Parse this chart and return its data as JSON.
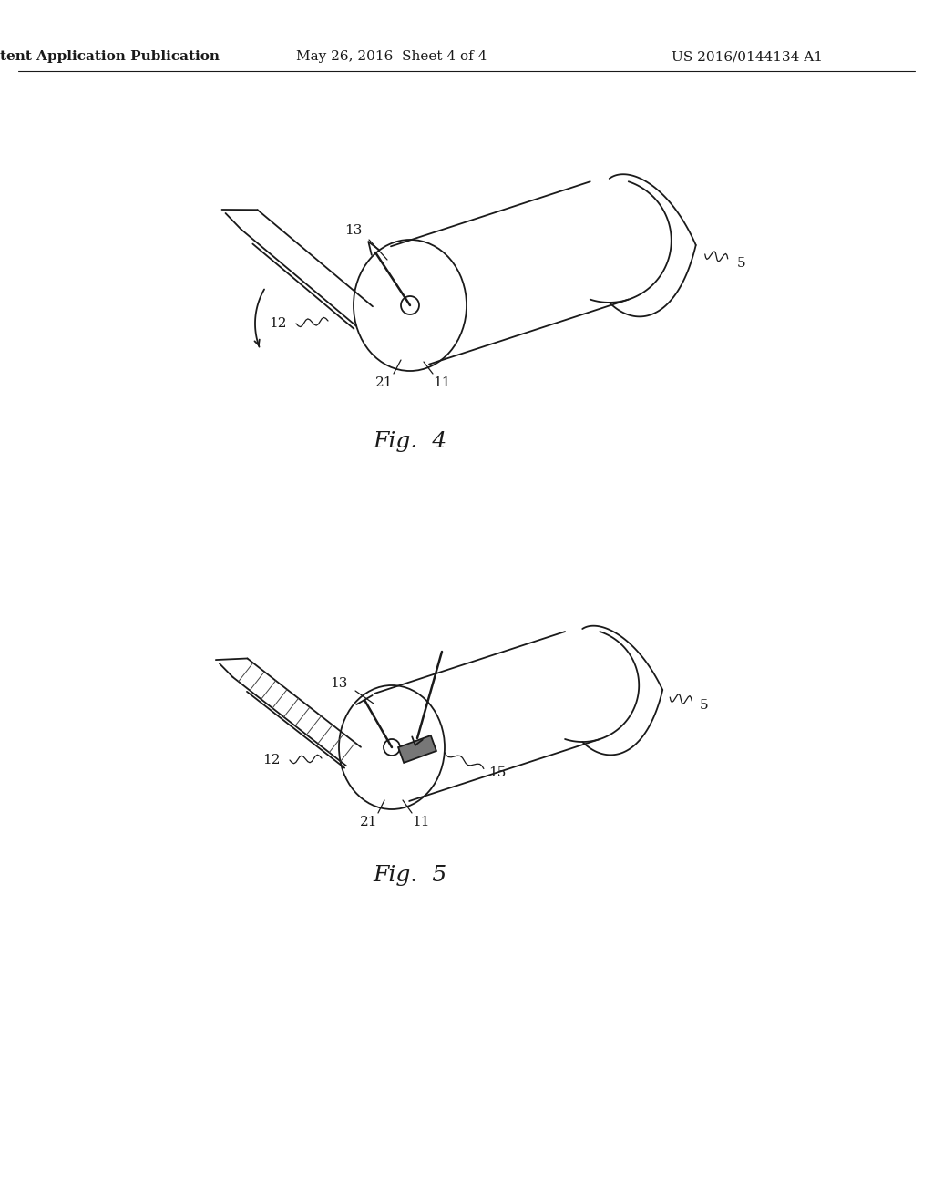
{
  "background_color": "#ffffff",
  "line_color": "#1a1a1a",
  "header_left": "Patent Application Publication",
  "header_center": "May 26, 2016  Sheet 4 of 4",
  "header_right": "US 2016/0144134 A1",
  "fig4_caption": "Fig.  4",
  "fig5_caption": "Fig.  5",
  "header_font_size": 11,
  "fig_label_font_size": 18,
  "ref_font_size": 11
}
